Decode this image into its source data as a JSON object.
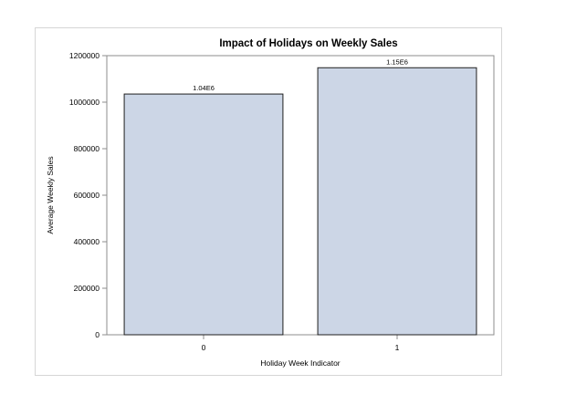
{
  "chart_data": {
    "type": "bar",
    "title": "Impact of Holidays on Weekly Sales",
    "xlabel": "Holiday Week Indicator",
    "ylabel": "Average Weekly Sales",
    "categories": [
      "0",
      "1"
    ],
    "values": [
      1035000,
      1148000
    ],
    "data_labels": [
      "1.04E6",
      "1.15E6"
    ],
    "ylim": [
      0,
      1200000
    ],
    "yticks": [
      0,
      200000,
      400000,
      600000,
      800000,
      1000000,
      1200000
    ],
    "ytick_labels": [
      "0",
      "200000",
      "400000",
      "600000",
      "800000",
      "1000000",
      "1200000"
    ],
    "bar_color": "#ccd6e6",
    "bar_edge_color": "#1f1f1f",
    "grid": false,
    "legend": "none"
  }
}
